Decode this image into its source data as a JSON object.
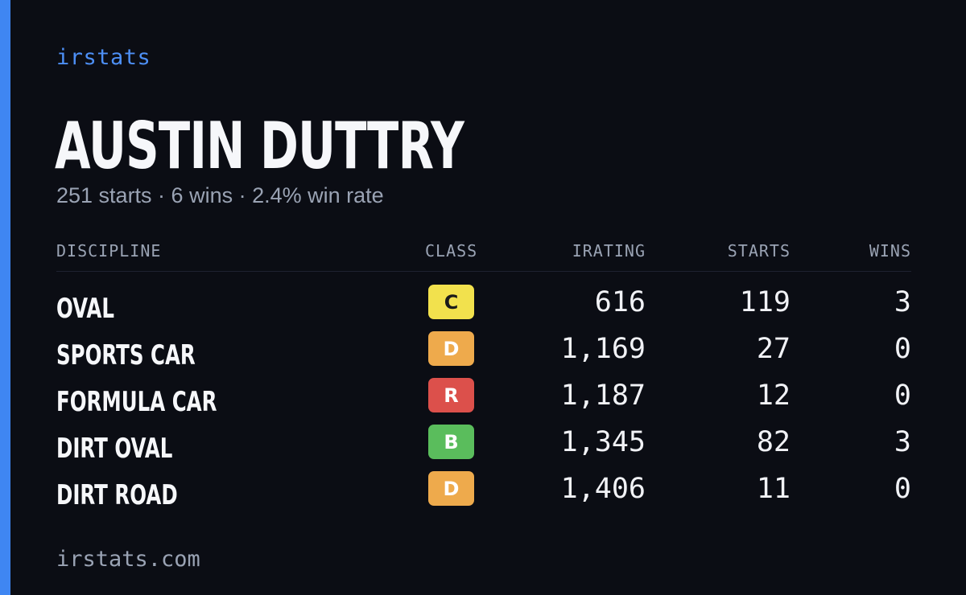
{
  "brand": "irstats",
  "driver": {
    "name": "AUSTIN DUTTRY",
    "summary": "251 starts · 6 wins · 2.4% win rate"
  },
  "table": {
    "headers": {
      "discipline": "DISCIPLINE",
      "class": "CLASS",
      "irating": "IRATING",
      "starts": "STARTS",
      "wins": "WINS"
    },
    "rows": [
      {
        "discipline": "OVAL",
        "class": "C",
        "class_color": "#f2e14d",
        "class_text_color": "#1a1a1a",
        "irating": "616",
        "starts": "119",
        "wins": "3"
      },
      {
        "discipline": "SPORTS CAR",
        "class": "D",
        "class_color": "#eeaa4c",
        "class_text_color": "#ffffff",
        "irating": "1,169",
        "starts": "27",
        "wins": "0"
      },
      {
        "discipline": "FORMULA CAR",
        "class": "R",
        "class_color": "#dc504b",
        "class_text_color": "#ffffff",
        "irating": "1,187",
        "starts": "12",
        "wins": "0"
      },
      {
        "discipline": "DIRT OVAL",
        "class": "B",
        "class_color": "#5abd5c",
        "class_text_color": "#ffffff",
        "irating": "1,345",
        "starts": "82",
        "wins": "3"
      },
      {
        "discipline": "DIRT ROAD",
        "class": "D",
        "class_color": "#eeaa4c",
        "class_text_color": "#ffffff",
        "irating": "1,406",
        "starts": "11",
        "wins": "0"
      }
    ]
  },
  "footer": "irstats.com",
  "colors": {
    "background": "#0b0d14",
    "accent": "#3f86f2",
    "muted": "#9aa3b4"
  }
}
